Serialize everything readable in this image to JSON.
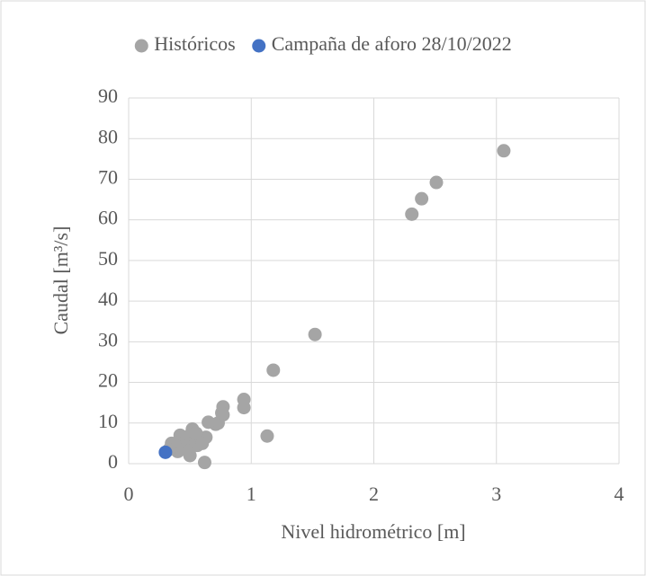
{
  "chart_data": {
    "type": "scatter",
    "x_label": "Nivel hidrométrico [m]",
    "y_label": "Caudal [m³/s]",
    "xlim": [
      0,
      4
    ],
    "xticks": [
      0,
      1,
      2,
      3,
      4
    ],
    "ylim": [
      0,
      90
    ],
    "yticks": [
      0,
      10,
      20,
      30,
      40,
      50,
      60,
      70,
      80,
      90
    ],
    "grid": true,
    "legend": "top",
    "series": [
      {
        "name": "Históricos",
        "color": "#a5a5a5",
        "x": [
          3.06,
          2.51,
          2.39,
          2.31,
          1.52,
          1.18,
          1.13,
          0.94,
          0.94,
          0.77,
          0.76,
          0.77,
          0.73,
          0.71,
          0.65,
          0.63,
          0.62,
          0.57,
          0.56,
          0.52,
          0.5,
          0.5,
          0.48,
          0.46,
          0.44,
          0.42,
          0.4,
          0.4,
          0.38,
          0.35,
          0.33,
          0.55,
          0.6
        ],
        "values": [
          77,
          69.2,
          65.2,
          61.4,
          31.8,
          23,
          6.8,
          15.8,
          13.8,
          14,
          12.5,
          12,
          10,
          9.7,
          10.2,
          6.5,
          0.3,
          6,
          4.5,
          8.5,
          7,
          2,
          5,
          3.5,
          6,
          7,
          5,
          3,
          4.5,
          5,
          3.5,
          7.5,
          5
        ]
      },
      {
        "name": "Campaña de aforo 28/10/2022",
        "color": "#4472c4",
        "x": [
          0.3
        ],
        "values": [
          2.8
        ]
      }
    ]
  }
}
